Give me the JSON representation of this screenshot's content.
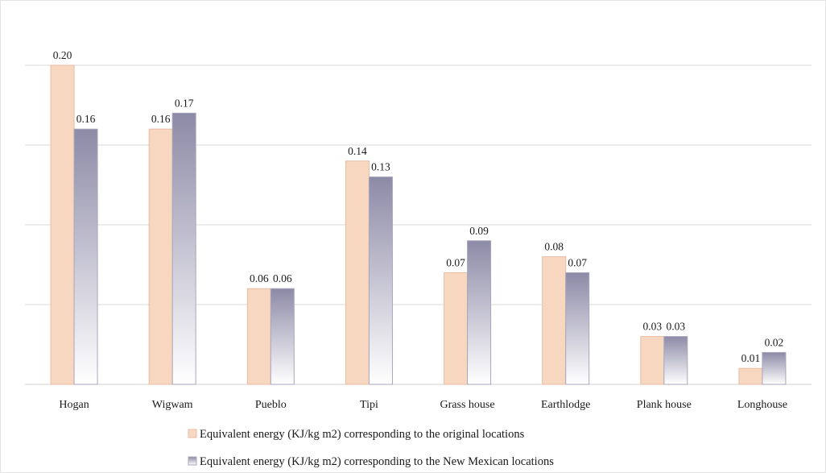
{
  "chart_data": {
    "type": "bar",
    "categories": [
      "Hogan",
      "Wigwam",
      "Pueblo",
      "Tipi",
      "Grass house",
      "Earthlodge",
      "Plank house",
      "Longhouse"
    ],
    "series": [
      {
        "name": "Equivalent energy (KJ/kg m2) corresponding to the original locations",
        "values": [
          0.2,
          0.16,
          0.06,
          0.14,
          0.07,
          0.08,
          0.03,
          0.01
        ],
        "labels": [
          "0.20",
          "0.16",
          "0.06",
          "0.14",
          "0.07",
          "0.08",
          "0.03",
          "0.01"
        ],
        "color": "#f8d7c1"
      },
      {
        "name": "Equivalent energy (KJ/kg m2) corresponding to the New Mexican locations",
        "values": [
          0.16,
          0.17,
          0.06,
          0.13,
          0.09,
          0.07,
          0.03,
          0.02
        ],
        "labels": [
          "0.16",
          "0.17",
          "0.06",
          "0.13",
          "0.09",
          "0.07",
          "0.03",
          "0.02"
        ],
        "color_top": "#8d8aa6",
        "color_bottom": "#ffffff"
      }
    ],
    "ylim": [
      0,
      0.24
    ],
    "grid": true,
    "legend_position": "bottom",
    "title": "",
    "xlabel": "",
    "ylabel": ""
  }
}
